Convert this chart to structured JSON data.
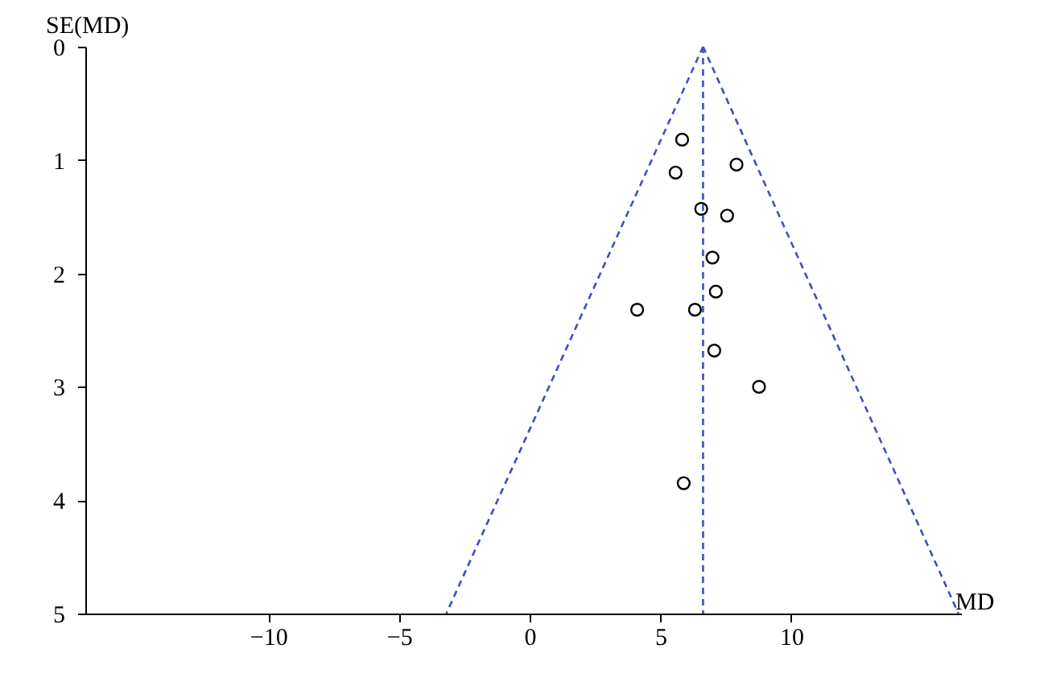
{
  "chart_data": {
    "type": "scatter",
    "xlabel": "MD",
    "ylabel": "SE(MD)",
    "xlim": [
      -17,
      16.5
    ],
    "ylim": [
      5,
      0
    ],
    "xticks": [
      {
        "value": -10,
        "label": "−10"
      },
      {
        "value": -5,
        "label": "−5"
      },
      0,
      5,
      10
    ],
    "yticks": [
      0,
      1,
      2,
      3,
      4,
      5
    ],
    "grid": false,
    "series": [
      {
        "marker": "circle",
        "color": "#000000",
        "x": [
          5.83,
          7.91,
          5.58,
          6.56,
          7.55,
          6.99,
          7.12,
          4.11,
          6.32,
          7.06,
          8.77,
          5.89
        ],
        "values": [
          0.82,
          1.04,
          1.11,
          1.43,
          1.49,
          1.86,
          2.16,
          2.32,
          2.32,
          2.68,
          3.0,
          3.85
        ]
      },
      {
        "type": "line",
        "line_style": "dashed",
        "color": "#3f4fbf",
        "x": [
          6.63,
          -3.19
        ],
        "values": [
          0,
          5
        ]
      },
      {
        "type": "line",
        "line_style": "dashed",
        "color": "#3f4fbf",
        "x": [
          6.63,
          16.4
        ],
        "values": [
          0,
          5
        ]
      }
    ],
    "ref_lines": [
      {
        "axis": "x",
        "value": 6.63,
        "color": "#3f4fbf",
        "line_style": "dashed"
      }
    ]
  }
}
